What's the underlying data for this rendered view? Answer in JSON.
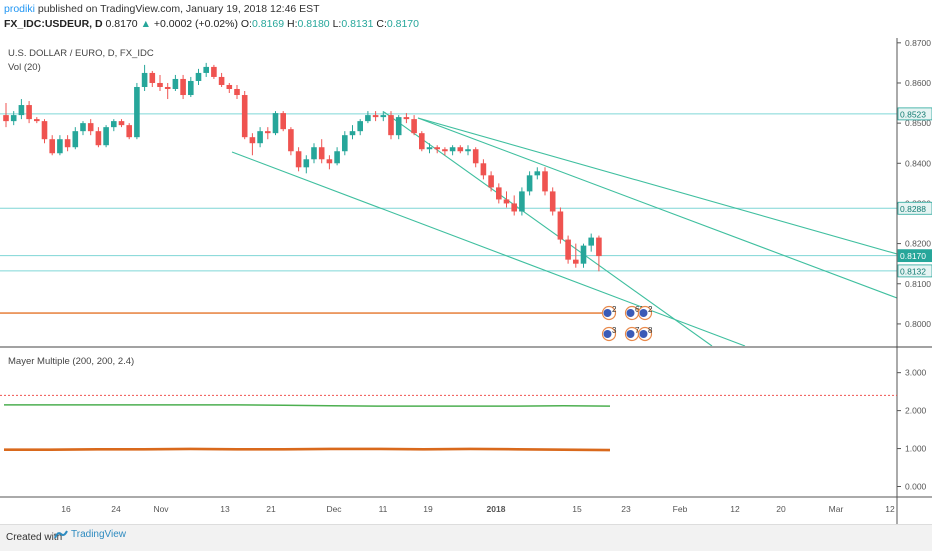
{
  "header": {
    "author": "prodiki",
    "published_text": "published on TradingView.com, January 19, 2018 12:46 EST",
    "symbol": "FX_IDC:USDEUR, D",
    "last": "0.8170",
    "change": "+0.0002 (+0.02%)",
    "open_label": "O:",
    "open": "0.8169",
    "high_label": "H:",
    "high": "0.8180",
    "low_label": "L:",
    "low": "0.8131",
    "close_label": "C:",
    "close": "0.8170"
  },
  "footer": {
    "created_with": "Created with",
    "brand": "TradingView"
  },
  "colors": {
    "up": "#26a69a",
    "down": "#ef5350",
    "channel": "#3fbf9f",
    "hline": "#7fd6d6",
    "orange": "#e8894a",
    "red_dotted": "#ef5350",
    "green_line": "#4caf50",
    "orange_line": "#d9691c"
  },
  "chart_data": [
    {
      "type": "candlestick",
      "title": "U.S. DOLLAR / EURO, D, FX_IDC",
      "subtitle": "Vol (20)",
      "y_ticks": [
        "0.8700",
        "0.8600",
        "0.8500",
        "0.8400",
        "0.8300",
        "0.8200",
        "0.8100",
        "0.8000"
      ],
      "ylim": [
        0.7945,
        0.8712
      ],
      "x_ticks": [
        "16",
        "24",
        "Nov",
        "13",
        "21",
        "Dec",
        "11",
        "19",
        "2018",
        "15",
        "23",
        "Feb",
        "12",
        "20",
        "Mar",
        "12"
      ],
      "price_labels": [
        {
          "label": "0.8523",
          "price": 0.8523,
          "highlight": false
        },
        {
          "label": "0.8288",
          "price": 0.8288,
          "highlight": false
        },
        {
          "label": "0.8170",
          "price": 0.817,
          "highlight": true
        },
        {
          "label": "0.8132",
          "price": 0.8132,
          "highlight": false
        }
      ],
      "horizontal_levels": [
        0.8523,
        0.8288,
        0.817,
        0.8132
      ],
      "orange_level": 0.8027,
      "candles": [
        {
          "o": 0.852,
          "h": 0.855,
          "l": 0.849,
          "c": 0.8505
        },
        {
          "o": 0.8505,
          "h": 0.853,
          "l": 0.8495,
          "c": 0.852
        },
        {
          "o": 0.852,
          "h": 0.856,
          "l": 0.851,
          "c": 0.8545
        },
        {
          "o": 0.8545,
          "h": 0.8555,
          "l": 0.85,
          "c": 0.851
        },
        {
          "o": 0.851,
          "h": 0.8515,
          "l": 0.85,
          "c": 0.8505
        },
        {
          "o": 0.8505,
          "h": 0.851,
          "l": 0.845,
          "c": 0.846
        },
        {
          "o": 0.846,
          "h": 0.847,
          "l": 0.842,
          "c": 0.8425
        },
        {
          "o": 0.8425,
          "h": 0.847,
          "l": 0.842,
          "c": 0.846
        },
        {
          "o": 0.846,
          "h": 0.847,
          "l": 0.843,
          "c": 0.844
        },
        {
          "o": 0.844,
          "h": 0.849,
          "l": 0.8435,
          "c": 0.848
        },
        {
          "o": 0.848,
          "h": 0.8505,
          "l": 0.847,
          "c": 0.85
        },
        {
          "o": 0.85,
          "h": 0.851,
          "l": 0.847,
          "c": 0.848
        },
        {
          "o": 0.848,
          "h": 0.849,
          "l": 0.844,
          "c": 0.8445
        },
        {
          "o": 0.8445,
          "h": 0.8495,
          "l": 0.844,
          "c": 0.849
        },
        {
          "o": 0.849,
          "h": 0.851,
          "l": 0.848,
          "c": 0.8505
        },
        {
          "o": 0.8505,
          "h": 0.851,
          "l": 0.849,
          "c": 0.8495
        },
        {
          "o": 0.8495,
          "h": 0.85,
          "l": 0.846,
          "c": 0.8465
        },
        {
          "o": 0.8465,
          "h": 0.86,
          "l": 0.846,
          "c": 0.859
        },
        {
          "o": 0.859,
          "h": 0.8645,
          "l": 0.858,
          "c": 0.8625
        },
        {
          "o": 0.8625,
          "h": 0.863,
          "l": 0.859,
          "c": 0.86
        },
        {
          "o": 0.86,
          "h": 0.862,
          "l": 0.858,
          "c": 0.859
        },
        {
          "o": 0.859,
          "h": 0.86,
          "l": 0.856,
          "c": 0.8585
        },
        {
          "o": 0.8585,
          "h": 0.862,
          "l": 0.858,
          "c": 0.861
        },
        {
          "o": 0.861,
          "h": 0.862,
          "l": 0.856,
          "c": 0.857
        },
        {
          "o": 0.857,
          "h": 0.8615,
          "l": 0.8565,
          "c": 0.8605
        },
        {
          "o": 0.8605,
          "h": 0.8635,
          "l": 0.8595,
          "c": 0.8625
        },
        {
          "o": 0.8625,
          "h": 0.865,
          "l": 0.8615,
          "c": 0.864
        },
        {
          "o": 0.864,
          "h": 0.8645,
          "l": 0.861,
          "c": 0.8615
        },
        {
          "o": 0.8615,
          "h": 0.8625,
          "l": 0.859,
          "c": 0.8595
        },
        {
          "o": 0.8595,
          "h": 0.86,
          "l": 0.8575,
          "c": 0.8585
        },
        {
          "o": 0.8585,
          "h": 0.8595,
          "l": 0.856,
          "c": 0.857
        },
        {
          "o": 0.857,
          "h": 0.858,
          "l": 0.846,
          "c": 0.8465
        },
        {
          "o": 0.8465,
          "h": 0.8475,
          "l": 0.842,
          "c": 0.845
        },
        {
          "o": 0.845,
          "h": 0.849,
          "l": 0.844,
          "c": 0.848
        },
        {
          "o": 0.848,
          "h": 0.849,
          "l": 0.846,
          "c": 0.8475
        },
        {
          "o": 0.8475,
          "h": 0.853,
          "l": 0.847,
          "c": 0.8525
        },
        {
          "o": 0.8525,
          "h": 0.853,
          "l": 0.848,
          "c": 0.8485
        },
        {
          "o": 0.8485,
          "h": 0.849,
          "l": 0.842,
          "c": 0.843
        },
        {
          "o": 0.843,
          "h": 0.844,
          "l": 0.838,
          "c": 0.839
        },
        {
          "o": 0.839,
          "h": 0.842,
          "l": 0.8375,
          "c": 0.841
        },
        {
          "o": 0.841,
          "h": 0.845,
          "l": 0.84,
          "c": 0.844
        },
        {
          "o": 0.844,
          "h": 0.846,
          "l": 0.84,
          "c": 0.841
        },
        {
          "o": 0.841,
          "h": 0.842,
          "l": 0.8385,
          "c": 0.84
        },
        {
          "o": 0.84,
          "h": 0.844,
          "l": 0.8395,
          "c": 0.843
        },
        {
          "o": 0.843,
          "h": 0.848,
          "l": 0.842,
          "c": 0.847
        },
        {
          "o": 0.847,
          "h": 0.8495,
          "l": 0.846,
          "c": 0.848
        },
        {
          "o": 0.848,
          "h": 0.851,
          "l": 0.847,
          "c": 0.8505
        },
        {
          "o": 0.8505,
          "h": 0.853,
          "l": 0.85,
          "c": 0.852
        },
        {
          "o": 0.852,
          "h": 0.853,
          "l": 0.8505,
          "c": 0.8515
        },
        {
          "o": 0.8515,
          "h": 0.853,
          "l": 0.8505,
          "c": 0.852
        },
        {
          "o": 0.852,
          "h": 0.853,
          "l": 0.846,
          "c": 0.847
        },
        {
          "o": 0.847,
          "h": 0.852,
          "l": 0.846,
          "c": 0.8515
        },
        {
          "o": 0.8515,
          "h": 0.8525,
          "l": 0.85,
          "c": 0.851
        },
        {
          "o": 0.851,
          "h": 0.852,
          "l": 0.847,
          "c": 0.8475
        },
        {
          "o": 0.8475,
          "h": 0.848,
          "l": 0.843,
          "c": 0.8435
        },
        {
          "o": 0.8435,
          "h": 0.845,
          "l": 0.8425,
          "c": 0.844
        },
        {
          "o": 0.844,
          "h": 0.8445,
          "l": 0.8425,
          "c": 0.8435
        },
        {
          "o": 0.8435,
          "h": 0.844,
          "l": 0.842,
          "c": 0.843
        },
        {
          "o": 0.843,
          "h": 0.8445,
          "l": 0.842,
          "c": 0.844
        },
        {
          "o": 0.844,
          "h": 0.8445,
          "l": 0.8425,
          "c": 0.843
        },
        {
          "o": 0.843,
          "h": 0.8445,
          "l": 0.842,
          "c": 0.8435
        },
        {
          "o": 0.8435,
          "h": 0.844,
          "l": 0.839,
          "c": 0.84
        },
        {
          "o": 0.84,
          "h": 0.841,
          "l": 0.836,
          "c": 0.837
        },
        {
          "o": 0.837,
          "h": 0.838,
          "l": 0.833,
          "c": 0.834
        },
        {
          "o": 0.834,
          "h": 0.835,
          "l": 0.83,
          "c": 0.831
        },
        {
          "o": 0.831,
          "h": 0.833,
          "l": 0.829,
          "c": 0.83
        },
        {
          "o": 0.83,
          "h": 0.832,
          "l": 0.827,
          "c": 0.828
        },
        {
          "o": 0.828,
          "h": 0.834,
          "l": 0.827,
          "c": 0.833
        },
        {
          "o": 0.833,
          "h": 0.838,
          "l": 0.832,
          "c": 0.837
        },
        {
          "o": 0.837,
          "h": 0.839,
          "l": 0.836,
          "c": 0.838
        },
        {
          "o": 0.838,
          "h": 0.839,
          "l": 0.832,
          "c": 0.833
        },
        {
          "o": 0.833,
          "h": 0.834,
          "l": 0.827,
          "c": 0.828
        },
        {
          "o": 0.828,
          "h": 0.829,
          "l": 0.82,
          "c": 0.821
        },
        {
          "o": 0.821,
          "h": 0.822,
          "l": 0.815,
          "c": 0.816
        },
        {
          "o": 0.816,
          "h": 0.82,
          "l": 0.814,
          "c": 0.815
        },
        {
          "o": 0.815,
          "h": 0.82,
          "l": 0.814,
          "c": 0.8195
        },
        {
          "o": 0.8195,
          "h": 0.8225,
          "l": 0.818,
          "c": 0.8215
        },
        {
          "o": 0.8215,
          "h": 0.822,
          "l": 0.8131,
          "c": 0.8169
        }
      ],
      "trendlines": [
        {
          "from": [
            232,
            152
          ],
          "to": [
            745,
            346
          ]
        },
        {
          "from": [
            384,
            112
          ],
          "to": [
            712,
            346
          ]
        },
        {
          "from": [
            418,
            118
          ],
          "to": [
            897,
            298
          ]
        },
        {
          "from": [
            418,
            118
          ],
          "to": [
            897,
            254
          ]
        }
      ],
      "event_markers": [
        {
          "label": "2",
          "row": 0,
          "col": 0
        },
        {
          "label": "61",
          "row": 0,
          "col": 1
        },
        {
          "label": "2",
          "row": 0,
          "col": 2
        },
        {
          "label": "3",
          "row": 1,
          "col": 0
        },
        {
          "label": "7",
          "row": 1,
          "col": 1
        },
        {
          "label": "8",
          "row": 1,
          "col": 2
        }
      ]
    },
    {
      "type": "line",
      "title": "Mayer Multiple (200, 200, 2.4)",
      "y_ticks": [
        "3.000",
        "2.000",
        "1.000",
        "0.000"
      ],
      "ylim": [
        -0.25,
        3.65
      ],
      "series": [
        {
          "color": "green",
          "values": [
            2.15,
            2.15,
            2.15,
            2.15,
            2.15,
            2.15,
            2.14,
            2.13,
            2.12,
            2.12,
            2.12,
            2.12,
            2.13,
            2.12
          ]
        },
        {
          "color": "orange",
          "values": [
            0.97,
            0.97,
            0.98,
            0.98,
            0.99,
            0.98,
            0.98,
            0.99,
            0.99,
            0.98,
            0.99,
            0.98,
            0.97,
            0.96
          ]
        }
      ],
      "reference_levels": [
        2.4
      ]
    }
  ]
}
